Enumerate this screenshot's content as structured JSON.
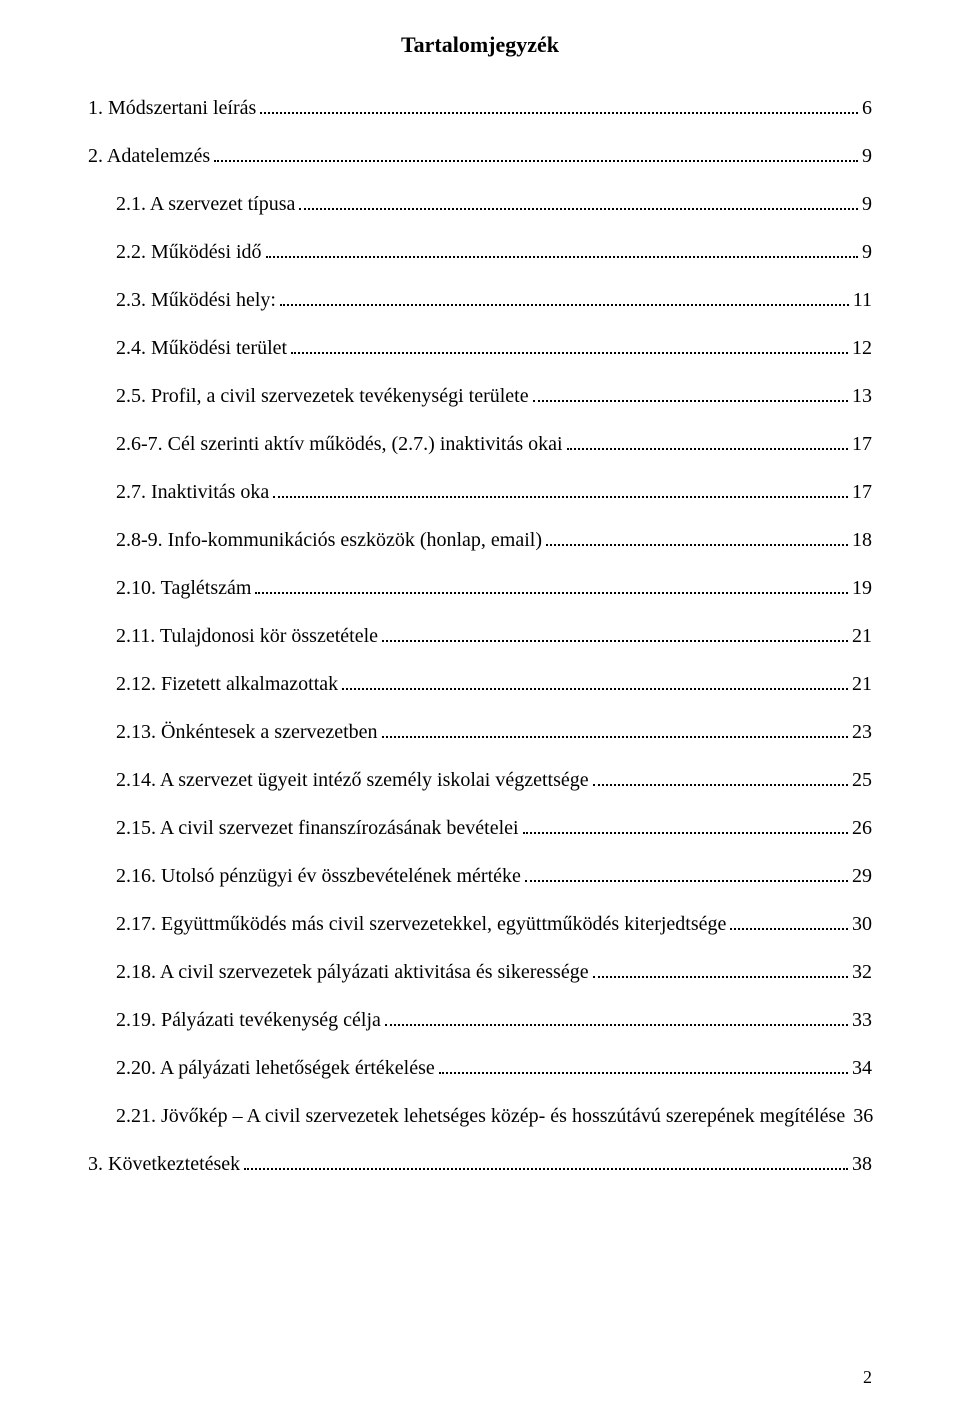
{
  "title": "Tartalomjegyzék",
  "entries": [
    {
      "n": "1.",
      "label": "Módszertani leírás",
      "page": "6",
      "level": 1
    },
    {
      "n": "2.",
      "label": "Adatelemzés",
      "page": "9",
      "level": 1
    },
    {
      "n": "2.1.",
      "label": "A szervezet típusa",
      "page": "9",
      "level": 2
    },
    {
      "n": "2.2.",
      "label": "Működési idő",
      "page": "9",
      "level": 2
    },
    {
      "n": "2.3.",
      "label": "Működési hely:",
      "page": "11",
      "level": 2
    },
    {
      "n": "2.4.",
      "label": "Működési terület",
      "page": "12",
      "level": 2
    },
    {
      "n": "2.5.",
      "label": "Profil, a civil szervezetek tevékenységi területe",
      "page": "13",
      "level": 2
    },
    {
      "n": "2.6-7.",
      "label": "Cél szerinti aktív működés, (2.7.) inaktivitás okai",
      "page": "17",
      "level": 2
    },
    {
      "n": "2.7.",
      "label": "Inaktivitás oka",
      "page": "17",
      "level": 2
    },
    {
      "n": "2.8-9.",
      "label": "Info-kommunikációs eszközök (honlap, email)",
      "page": "18",
      "level": 2
    },
    {
      "n": "2.10.",
      "label": "Taglétszám",
      "page": "19",
      "level": 2
    },
    {
      "n": "2.11.",
      "label": "Tulajdonosi kör összetétele",
      "page": "21",
      "level": 2
    },
    {
      "n": "2.12.",
      "label": "Fizetett alkalmazottak",
      "page": "21",
      "level": 2
    },
    {
      "n": "2.13.",
      "label": "Önkéntesek a szervezetben",
      "page": "23",
      "level": 2
    },
    {
      "n": "2.14.",
      "label": "A szervezet ügyeit intéző személy iskolai végzettsége",
      "page": "25",
      "level": 2
    },
    {
      "n": "2.15.",
      "label": "A civil szervezet finanszírozásának bevételei",
      "page": "26",
      "level": 2
    },
    {
      "n": "2.16.",
      "label": "Utolsó pénzügyi év összbevételének mértéke",
      "page": "29",
      "level": 2
    },
    {
      "n": "2.17.",
      "label": "Együttműködés más civil szervezetekkel, együttműködés kiterjedtsége",
      "page": "30",
      "level": 2
    },
    {
      "n": "2.18.",
      "label": "A civil szervezetek pályázati aktivitása és sikeressége",
      "page": "32",
      "level": 2
    },
    {
      "n": "2.19.",
      "label": "Pályázati tevékenység célja",
      "page": "33",
      "level": 2
    },
    {
      "n": "2.20.",
      "label": "A pályázati lehetőségek értékelése",
      "page": "34",
      "level": 2
    },
    {
      "n": "2.21.",
      "label": "Jövőkép – A civil szervezetek lehetséges közép- és hosszútávú szerepének megítélése",
      "page": "36",
      "level": 2
    },
    {
      "n": "3.",
      "label": "Következtetések",
      "page": "38",
      "level": 1
    }
  ],
  "page_number": "2",
  "colors": {
    "text": "#000000",
    "background": "#ffffff"
  },
  "typography": {
    "font_family": "Times New Roman",
    "title_fontsize_pt": 16,
    "body_fontsize_pt": 14
  }
}
